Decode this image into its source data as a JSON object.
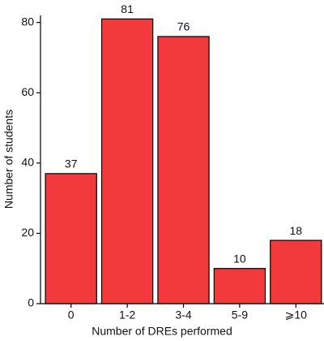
{
  "chart_data": {
    "type": "bar",
    "x_label": "Number of DREs performed",
    "y_label": "Number of students",
    "categories": [
      "0",
      "1-2",
      "3-4",
      "5-9",
      "⩾10"
    ],
    "values": [
      37,
      81,
      76,
      10,
      18
    ],
    "color": "#f23a3c",
    "ylim": [
      0,
      82
    ],
    "yticks": [
      0,
      20,
      40,
      60,
      80
    ],
    "grid": false
  }
}
